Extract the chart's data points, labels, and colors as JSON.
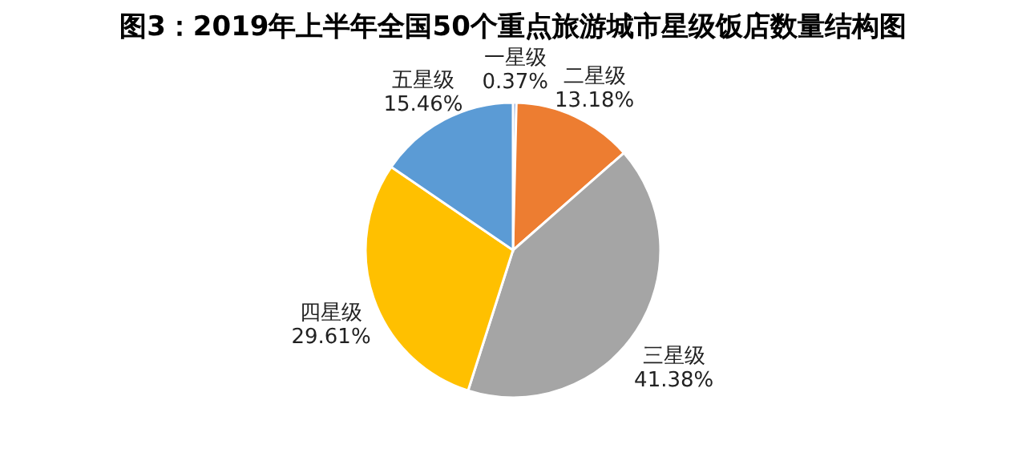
{
  "chart_data": {
    "type": "pie",
    "title": "图3：2019年上半年全国50个重点旅游城市星级饭店数量结构图",
    "categories": [
      "一星级",
      "二星级",
      "三星级",
      "四星级",
      "五星级"
    ],
    "values": [
      0.37,
      13.18,
      41.38,
      29.61,
      15.46
    ],
    "value_labels": [
      "0.37%",
      "13.18%",
      "41.38%",
      "29.61%",
      "15.46%"
    ],
    "colors": [
      "#4472c4",
      "#ed7d31",
      "#a5a5a5",
      "#ffc000",
      "#5b9bd5"
    ],
    "legend": false
  }
}
